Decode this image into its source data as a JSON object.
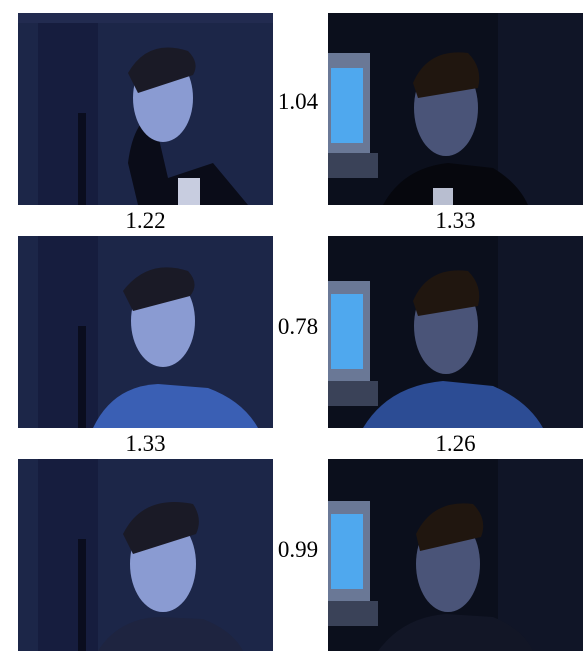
{
  "rows": [
    {
      "left_photo": {
        "subject": "subject-1-lit-left",
        "bg": "#1b2444"
      },
      "right_photo": {
        "subject": "subject-1-lit-right",
        "bg": "#0d1222"
      },
      "center_value": "1.04",
      "left_caption": "1.22",
      "right_caption": "1.33"
    },
    {
      "left_photo": {
        "subject": "subject-2-lit-left",
        "bg": "#1b2444"
      },
      "right_photo": {
        "subject": "subject-2-lit-right",
        "bg": "#0d1222"
      },
      "center_value": "0.78",
      "left_caption": "1.33",
      "right_caption": "1.26"
    },
    {
      "left_photo": {
        "subject": "subject-3-lit-left",
        "bg": "#1b2444"
      },
      "right_photo": {
        "subject": "subject-3-lit-right",
        "bg": "#0d1222"
      },
      "center_value": "0.99"
    }
  ],
  "colors": {
    "left_scene": "#1c2648",
    "right_scene": "#0b0f1c",
    "monitor_screen": "#4fa8ee",
    "skin_left": "#8fa0d8",
    "skin_right": "#4a5478"
  }
}
